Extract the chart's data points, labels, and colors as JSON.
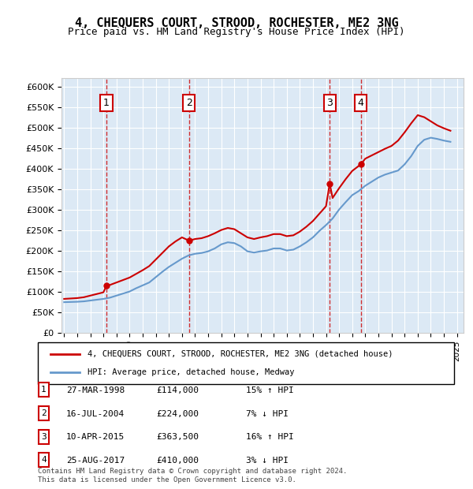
{
  "title": "4, CHEQUERS COURT, STROOD, ROCHESTER, ME2 3NG",
  "subtitle": "Price paid vs. HM Land Registry's House Price Index (HPI)",
  "footer": "Contains HM Land Registry data © Crown copyright and database right 2024.\nThis data is licensed under the Open Government Licence v3.0.",
  "legend_line1": "4, CHEQUERS COURT, STROOD, ROCHESTER, ME2 3NG (detached house)",
  "legend_line2": "HPI: Average price, detached house, Medway",
  "sale_color": "#cc0000",
  "hpi_color": "#6699cc",
  "background_color": "#dce9f5",
  "sale_line_color": "#cc0000",
  "ylim": [
    0,
    620000
  ],
  "yticks": [
    0,
    50000,
    100000,
    150000,
    200000,
    250000,
    300000,
    350000,
    400000,
    450000,
    500000,
    550000,
    600000
  ],
  "transactions": [
    {
      "num": 1,
      "date": "27-MAR-1998",
      "price": 114000,
      "pct": "15%",
      "dir": "↑",
      "year": 1998.23
    },
    {
      "num": 2,
      "date": "16-JUL-2004",
      "price": 224000,
      "pct": "7%",
      "dir": "↓",
      "year": 2004.54
    },
    {
      "num": 3,
      "date": "10-APR-2015",
      "price": 363500,
      "pct": "16%",
      "dir": "↑",
      "year": 2015.28
    },
    {
      "num": 4,
      "date": "25-AUG-2017",
      "price": 410000,
      "pct": "3%",
      "dir": "↓",
      "year": 2017.65
    }
  ],
  "hpi_years": [
    1995,
    1995.5,
    1996,
    1996.5,
    1997,
    1997.5,
    1998,
    1998.5,
    1999,
    1999.5,
    2000,
    2000.5,
    2001,
    2001.5,
    2002,
    2002.5,
    2003,
    2003.5,
    2004,
    2004.5,
    2005,
    2005.5,
    2006,
    2006.5,
    2007,
    2007.5,
    2008,
    2008.5,
    2009,
    2009.5,
    2010,
    2010.5,
    2011,
    2011.5,
    2012,
    2012.5,
    2013,
    2013.5,
    2014,
    2014.5,
    2015,
    2015.5,
    2016,
    2016.5,
    2017,
    2017.5,
    2018,
    2018.5,
    2019,
    2019.5,
    2020,
    2020.5,
    2021,
    2021.5,
    2022,
    2022.5,
    2023,
    2023.5,
    2024,
    2024.5
  ],
  "hpi_values": [
    74000,
    74500,
    75000,
    76000,
    78000,
    80000,
    82000,
    85000,
    90000,
    95000,
    100000,
    108000,
    115000,
    122000,
    135000,
    148000,
    160000,
    170000,
    180000,
    188000,
    192000,
    194000,
    198000,
    205000,
    215000,
    220000,
    218000,
    210000,
    198000,
    195000,
    198000,
    200000,
    205000,
    205000,
    200000,
    202000,
    210000,
    220000,
    232000,
    248000,
    262000,
    278000,
    300000,
    318000,
    335000,
    345000,
    358000,
    368000,
    378000,
    385000,
    390000,
    395000,
    410000,
    430000,
    455000,
    470000,
    475000,
    472000,
    468000,
    465000
  ],
  "sale_years": [
    1995,
    1995.5,
    1996,
    1996.5,
    1997,
    1997.5,
    1998,
    1998.23,
    1998.5,
    1999,
    1999.5,
    2000,
    2000.5,
    2001,
    2001.5,
    2002,
    2002.5,
    2003,
    2003.5,
    2004,
    2004.54,
    2005,
    2005.5,
    2006,
    2006.5,
    2007,
    2007.5,
    2008,
    2008.5,
    2009,
    2009.5,
    2010,
    2010.5,
    2011,
    2011.5,
    2012,
    2012.5,
    2013,
    2013.5,
    2014,
    2014.5,
    2015,
    2015.28,
    2015.5,
    2016,
    2016.5,
    2017,
    2017.65,
    2018,
    2018.5,
    2019,
    2019.5,
    2020,
    2020.5,
    2021,
    2021.5,
    2022,
    2022.5,
    2023,
    2023.5,
    2024,
    2024.5
  ],
  "sale_values": [
    82000,
    83000,
    84000,
    86000,
    90000,
    94000,
    98000,
    114000,
    116000,
    122000,
    128000,
    134000,
    143000,
    152000,
    162000,
    178000,
    194000,
    210000,
    222000,
    232000,
    224000,
    228000,
    230000,
    235000,
    242000,
    250000,
    255000,
    252000,
    242000,
    232000,
    228000,
    232000,
    235000,
    240000,
    240000,
    235000,
    237000,
    246000,
    258000,
    272000,
    290000,
    308000,
    363500,
    328000,
    352000,
    374000,
    394000,
    410000,
    424000,
    432000,
    440000,
    448000,
    455000,
    468000,
    488000,
    510000,
    530000,
    525000,
    515000,
    505000,
    498000,
    492000
  ]
}
